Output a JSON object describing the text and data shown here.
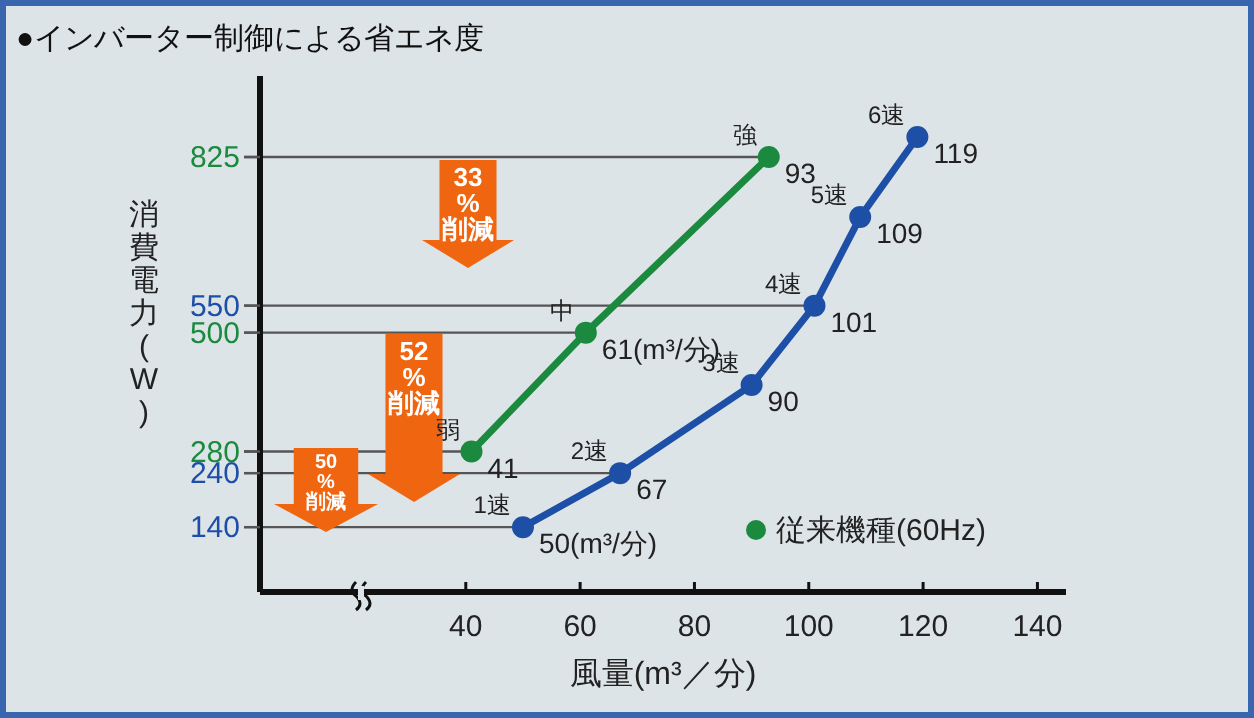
{
  "chart_data": {
    "type": "line",
    "title": "●インバーター制御による省エネ度",
    "xlabel": "風量(m³／分)",
    "ylabel": "消費電力(W)",
    "xlim": [
      4,
      145
    ],
    "xticks": [
      40,
      60,
      80,
      100,
      120,
      140
    ],
    "ylim": [
      20,
      975
    ],
    "yticks": [
      140,
      240,
      280,
      500,
      550,
      825
    ],
    "series": [
      {
        "color": "#1d4fa6",
        "x": [
          50,
          67,
          90,
          101,
          109,
          119
        ],
        "values": [
          140,
          240,
          403,
          550,
          714,
          862
        ]
      },
      {
        "name": "従来機種(60Hz)",
        "color": "#1b8a3e",
        "x": [
          41,
          61,
          93
        ],
        "values": [
          280,
          500,
          825
        ]
      }
    ],
    "ref_lines": [
      {
        "axis": "y",
        "value": 825
      },
      {
        "axis": "y",
        "value": 550
      },
      {
        "axis": "y",
        "value": 500
      },
      {
        "axis": "y",
        "value": 280
      },
      {
        "axis": "y",
        "value": 240
      },
      {
        "axis": "y",
        "value": 140
      }
    ],
    "annotations": [
      {
        "text": "1速",
        "x": 50,
        "y": 140
      },
      {
        "text": "50(m³/分)",
        "x": 50,
        "y": 140
      },
      {
        "text": "2速",
        "x": 67,
        "y": 240
      },
      {
        "text": "67",
        "x": 67,
        "y": 240
      },
      {
        "text": "3速",
        "x": 90,
        "y": 403
      },
      {
        "text": "90",
        "x": 90,
        "y": 403
      },
      {
        "text": "4速",
        "x": 101,
        "y": 550
      },
      {
        "text": "101",
        "x": 101,
        "y": 550
      },
      {
        "text": "5速",
        "x": 109,
        "y": 714
      },
      {
        "text": "109",
        "x": 109,
        "y": 714
      },
      {
        "text": "6速",
        "x": 119,
        "y": 862
      },
      {
        "text": "119",
        "x": 119,
        "y": 862
      },
      {
        "text": "弱",
        "x": 41,
        "y": 280
      },
      {
        "text": "41",
        "x": 41,
        "y": 280
      },
      {
        "text": "中",
        "x": 61,
        "y": 500
      },
      {
        "text": "61(m³/分)",
        "x": 61,
        "y": 500
      },
      {
        "text": "強",
        "x": 93,
        "y": 825
      },
      {
        "text": "93",
        "x": 93,
        "y": 825
      },
      "33%削減",
      "52%削減",
      "50%削減"
    ],
    "marker": "circle",
    "grid": false,
    "legend": "bottom right"
  }
}
